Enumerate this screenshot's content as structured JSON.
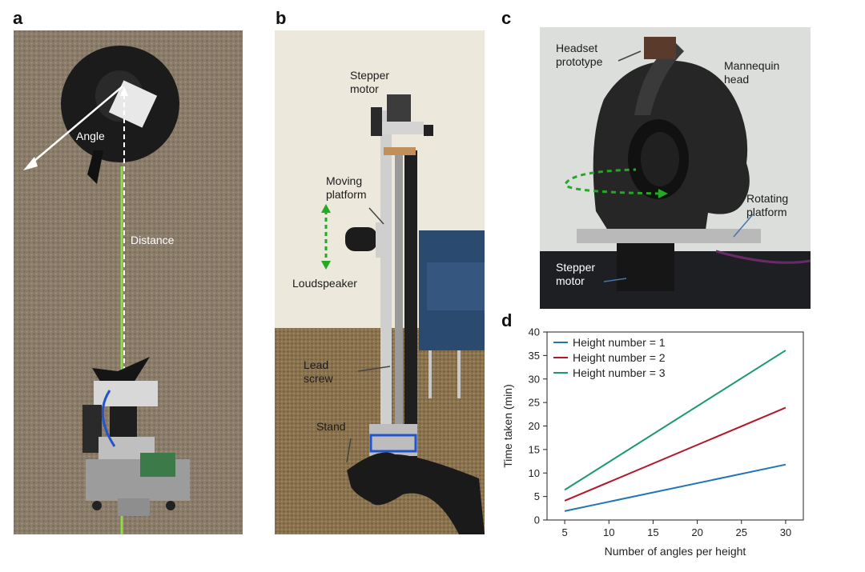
{
  "panels": {
    "a": {
      "letter": "a",
      "labels": {
        "angle": "Angle",
        "distance": "Distance"
      }
    },
    "b": {
      "letter": "b",
      "labels": {
        "stepper_motor": [
          "Stepper",
          "motor"
        ],
        "moving_platform": [
          "Moving",
          "platform"
        ],
        "loudspeaker": "Loudspeaker",
        "lead_screw": [
          "Lead",
          "screw"
        ],
        "stand": "Stand"
      }
    },
    "c": {
      "letter": "c",
      "labels": {
        "headset_prototype": [
          "Headset",
          "prototype"
        ],
        "mannequin_head": [
          "Mannequin",
          "head"
        ],
        "rotating_platform": [
          "Rotating",
          "platform"
        ],
        "stepper_motor": [
          "Stepper",
          "motor"
        ]
      }
    },
    "d": {
      "letter": "d"
    }
  },
  "colors": {
    "series1": "#1f77b4",
    "series2": "#b2182b",
    "series3": "#1a9a6c",
    "green_arrow": "#22aa22",
    "floor": "#8a7a68",
    "carpet": "#8b7350",
    "wall": "#ede8dc"
  },
  "chart_data": {
    "type": "line",
    "title": "",
    "xlabel": "Number of angles per height",
    "ylabel": "Time taken (min)",
    "xlim": [
      3,
      32
    ],
    "ylim": [
      0,
      40
    ],
    "xticks": [
      5,
      10,
      15,
      20,
      25,
      30
    ],
    "yticks": [
      0,
      5,
      10,
      15,
      20,
      25,
      30,
      35,
      40
    ],
    "grid": false,
    "legend_position": "top-left",
    "series": [
      {
        "name": "Height number = 1",
        "x": [
          5,
          30
        ],
        "y": [
          1.9,
          11.8
        ]
      },
      {
        "name": "Height number = 2",
        "x": [
          5,
          30
        ],
        "y": [
          4.1,
          23.9
        ]
      },
      {
        "name": "Height number = 3",
        "x": [
          5,
          30
        ],
        "y": [
          6.4,
          36.1
        ]
      }
    ]
  }
}
